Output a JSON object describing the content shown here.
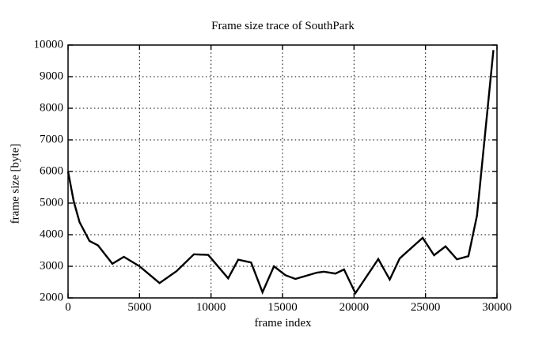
{
  "figure": {
    "title": "Frame size trace of SouthPark",
    "xlabel": "frame index",
    "ylabel": "frame size [byte]"
  },
  "chart_data": {
    "type": "line",
    "title": "Frame size trace of SouthPark",
    "xlabel": "frame index",
    "ylabel": "frame size [byte]",
    "xlim": [
      0,
      30000
    ],
    "ylim": [
      2000,
      10000
    ],
    "x_ticks": [
      0,
      5000,
      10000,
      15000,
      20000,
      25000,
      30000
    ],
    "y_ticks": [
      2000,
      3000,
      4000,
      5000,
      6000,
      7000,
      8000,
      9000,
      10000
    ],
    "grid": true,
    "grid_style": "dotted",
    "legend": "none",
    "colors": {
      "line": "#000000",
      "grid": "#000000",
      "border": "#000000",
      "text": "#000000",
      "background": "#ffffff"
    },
    "series": [
      {
        "name": "frame size trace",
        "points": [
          [
            0,
            6000
          ],
          [
            400,
            5050
          ],
          [
            800,
            4400
          ],
          [
            1500,
            3800
          ],
          [
            2100,
            3660
          ],
          [
            3100,
            3080
          ],
          [
            3900,
            3300
          ],
          [
            5000,
            3000
          ],
          [
            6400,
            2470
          ],
          [
            7600,
            2850
          ],
          [
            8800,
            3380
          ],
          [
            9800,
            3360
          ],
          [
            11200,
            2620
          ],
          [
            11900,
            3210
          ],
          [
            12800,
            3120
          ],
          [
            13600,
            2180
          ],
          [
            14400,
            3000
          ],
          [
            15200,
            2720
          ],
          [
            15900,
            2600
          ],
          [
            17400,
            2800
          ],
          [
            17900,
            2830
          ],
          [
            18700,
            2770
          ],
          [
            19300,
            2900
          ],
          [
            20100,
            2150
          ],
          [
            21700,
            3230
          ],
          [
            22500,
            2580
          ],
          [
            23200,
            3250
          ],
          [
            24800,
            3900
          ],
          [
            25600,
            3350
          ],
          [
            26400,
            3630
          ],
          [
            27200,
            3220
          ],
          [
            28000,
            3320
          ],
          [
            28600,
            4600
          ],
          [
            29750,
            9840
          ]
        ]
      }
    ]
  }
}
